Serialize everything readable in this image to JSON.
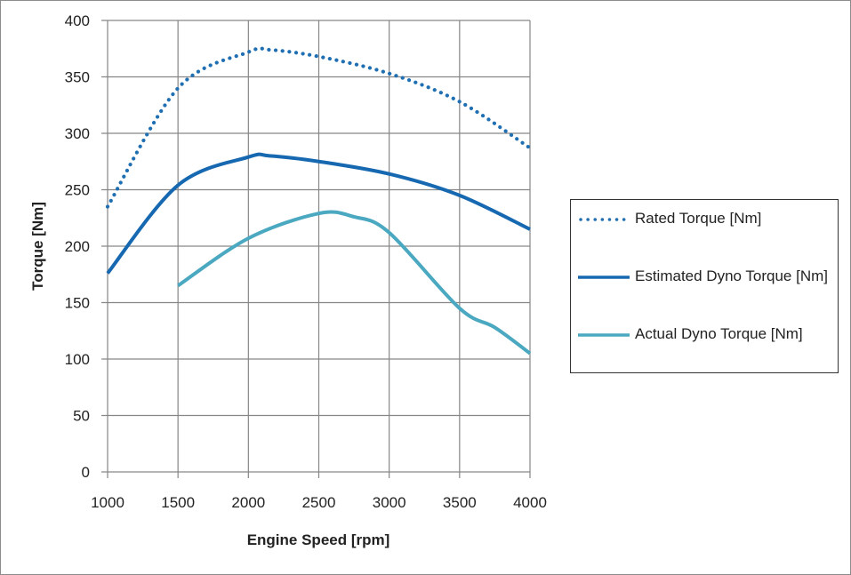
{
  "chart_data": {
    "type": "line",
    "title": "",
    "xlabel": "Engine Speed [rpm]",
    "ylabel": "Torque [Nm]",
    "xlim": [
      1000,
      4000
    ],
    "ylim": [
      0,
      400
    ],
    "xticks": [
      1000,
      1500,
      2000,
      2500,
      3000,
      3500,
      4000
    ],
    "yticks": [
      0,
      50,
      100,
      150,
      200,
      250,
      300,
      350,
      400
    ],
    "grid": true,
    "legend_position": "right",
    "series": [
      {
        "name": "Rated Torque [Nm]",
        "style": "dotted",
        "color": "#1f6fb2",
        "x": [
          1000,
          1500,
          2000,
          2150,
          2500,
          3000,
          3500,
          4000
        ],
        "y": [
          235,
          340,
          372,
          374,
          368,
          353,
          328,
          287
        ]
      },
      {
        "name": "Estimated Dyno Torque [Nm]",
        "style": "solid",
        "color": "#1668b0",
        "x": [
          1000,
          1500,
          2000,
          2150,
          2500,
          3000,
          3500,
          4000
        ],
        "y": [
          176,
          254,
          279,
          280,
          275,
          264,
          245,
          215
        ]
      },
      {
        "name": "Actual Dyno Torque [Nm]",
        "style": "solid",
        "color": "#4aa8c0",
        "x": [
          1500,
          2000,
          2500,
          2750,
          3000,
          3500,
          3750,
          4000
        ],
        "y": [
          165,
          207,
          229,
          226,
          212,
          145,
          128,
          105
        ]
      }
    ]
  }
}
